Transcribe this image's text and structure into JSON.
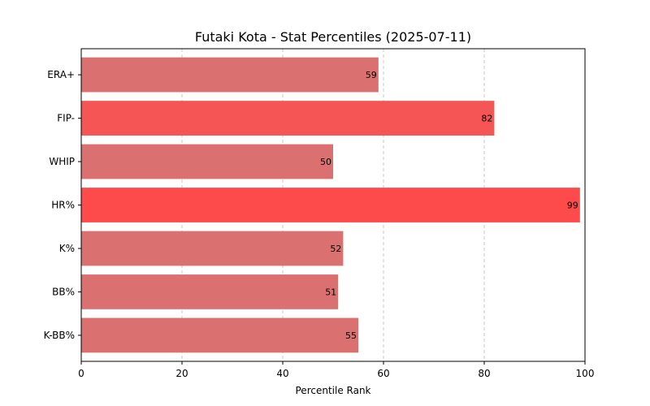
{
  "chart_data": {
    "type": "bar",
    "orientation": "horizontal",
    "title": "Futaki Kota - Stat Percentiles (2025-07-11)",
    "xlabel": "Percentile Rank",
    "ylabel": "",
    "xlim": [
      0,
      100
    ],
    "xticks": [
      "0",
      "20",
      "40",
      "60",
      "80",
      "100"
    ],
    "grid": "x-dashed",
    "categories": [
      "ERA+",
      "FIP-",
      "WHIP",
      "HR%",
      "K%",
      "BB%",
      "K-BB%"
    ],
    "values": [
      59,
      82,
      50,
      99,
      52,
      51,
      55
    ],
    "data_labels": [
      "59",
      "82",
      "50",
      "99",
      "52",
      "51",
      "55"
    ],
    "colors": [
      "#da706f",
      "#f55555",
      "#da706f",
      "#fd4a4a",
      "#da706f",
      "#da706f",
      "#da706f"
    ]
  }
}
